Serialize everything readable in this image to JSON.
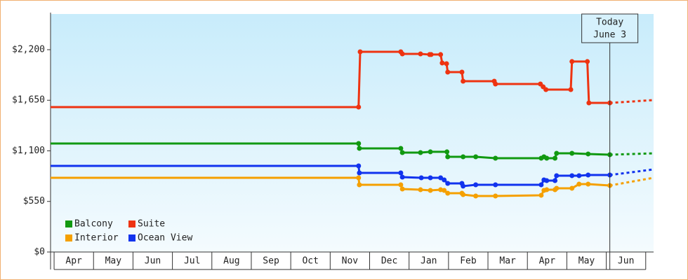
{
  "chart_data": {
    "type": "line",
    "categories": [
      "Apr",
      "May",
      "Jun",
      "Jul",
      "Aug",
      "Sep",
      "Oct",
      "Nov",
      "Dec",
      "Jan",
      "Feb",
      "Mar",
      "Apr",
      "May",
      "Jun"
    ],
    "xlim": [
      -0.09,
      15.2
    ],
    "ylim": [
      0,
      2588
    ],
    "yticks": [
      {
        "value": 0,
        "label": "$0"
      },
      {
        "value": 550,
        "label": "$550"
      },
      {
        "value": 1100,
        "label": "$1,100"
      },
      {
        "value": 1650,
        "label": "$1,650"
      },
      {
        "value": 2200,
        "label": "$2,200"
      }
    ],
    "series": [
      {
        "name": "Balcony",
        "color": "#119911",
        "x": [
          -0.09,
          7.72,
          7.74,
          8.79,
          8.83,
          9.29,
          9.54,
          9.96,
          9.98,
          10.37,
          10.69,
          11.19,
          12.35,
          12.42,
          12.49,
          12.7,
          12.74,
          13.13,
          13.54,
          14.09
        ],
        "values": [
          1180,
          1180,
          1127,
          1127,
          1081,
          1081,
          1089,
          1089,
          1035,
          1035,
          1035,
          1020,
          1020,
          1035,
          1020,
          1020,
          1073,
          1073,
          1066,
          1058
        ],
        "forecast": {
          "x": [
            14.09,
            15.2
          ],
          "values": [
            1058,
            1073
          ]
        }
      },
      {
        "name": "Suite",
        "color": "#ee3311",
        "x": [
          -0.09,
          7.72,
          7.76,
          8.79,
          8.83,
          9.29,
          9.52,
          9.56,
          9.8,
          9.84,
          9.95,
          9.98,
          10.34,
          10.37,
          11.16,
          11.19,
          12.33,
          12.4,
          12.47,
          13.1,
          13.13,
          13.52,
          13.56,
          14.09
        ],
        "values": [
          1576,
          1576,
          2177,
          2177,
          2154,
          2154,
          2147,
          2147,
          2147,
          2055,
          2048,
          1956,
          1956,
          1857,
          1857,
          1827,
          1827,
          1796,
          1766,
          1766,
          2071,
          2071,
          1621,
          1621
        ],
        "forecast": {
          "x": [
            14.09,
            15.2
          ],
          "values": [
            1621,
            1652
          ]
        }
      },
      {
        "name": "Interior",
        "color": "#f5a000",
        "x": [
          -0.09,
          7.72,
          7.74,
          8.79,
          8.83,
          9.29,
          9.54,
          9.8,
          9.89,
          9.98,
          10.34,
          10.37,
          10.69,
          11.19,
          12.35,
          12.42,
          12.49,
          12.7,
          12.74,
          13.13,
          13.31,
          13.54,
          14.09
        ],
        "values": [
          807,
          807,
          731,
          731,
          685,
          677,
          670,
          677,
          670,
          639,
          639,
          624,
          609,
          609,
          617,
          670,
          677,
          677,
          693,
          693,
          738,
          738,
          723
        ],
        "forecast": {
          "x": [
            14.09,
            15.2
          ],
          "values": [
            723,
            807
          ]
        }
      },
      {
        "name": "Ocean View",
        "color": "#1133ee",
        "x": [
          -0.09,
          7.72,
          7.74,
          8.79,
          8.83,
          9.31,
          9.54,
          9.8,
          9.89,
          9.98,
          10.34,
          10.37,
          10.69,
          11.19,
          12.35,
          12.42,
          12.49,
          12.7,
          12.74,
          13.13,
          13.31,
          13.54,
          14.09
        ],
        "values": [
          936,
          936,
          860,
          860,
          814,
          807,
          807,
          807,
          784,
          746,
          746,
          716,
          731,
          731,
          731,
          784,
          776,
          776,
          830,
          830,
          830,
          837,
          837
        ],
        "forecast": {
          "x": [
            14.09,
            15.2
          ],
          "values": [
            837,
            898
          ]
        }
      }
    ],
    "annotation": {
      "x": 14.09,
      "lines": [
        "Today",
        "June 3"
      ]
    },
    "legend": "lower-left"
  }
}
